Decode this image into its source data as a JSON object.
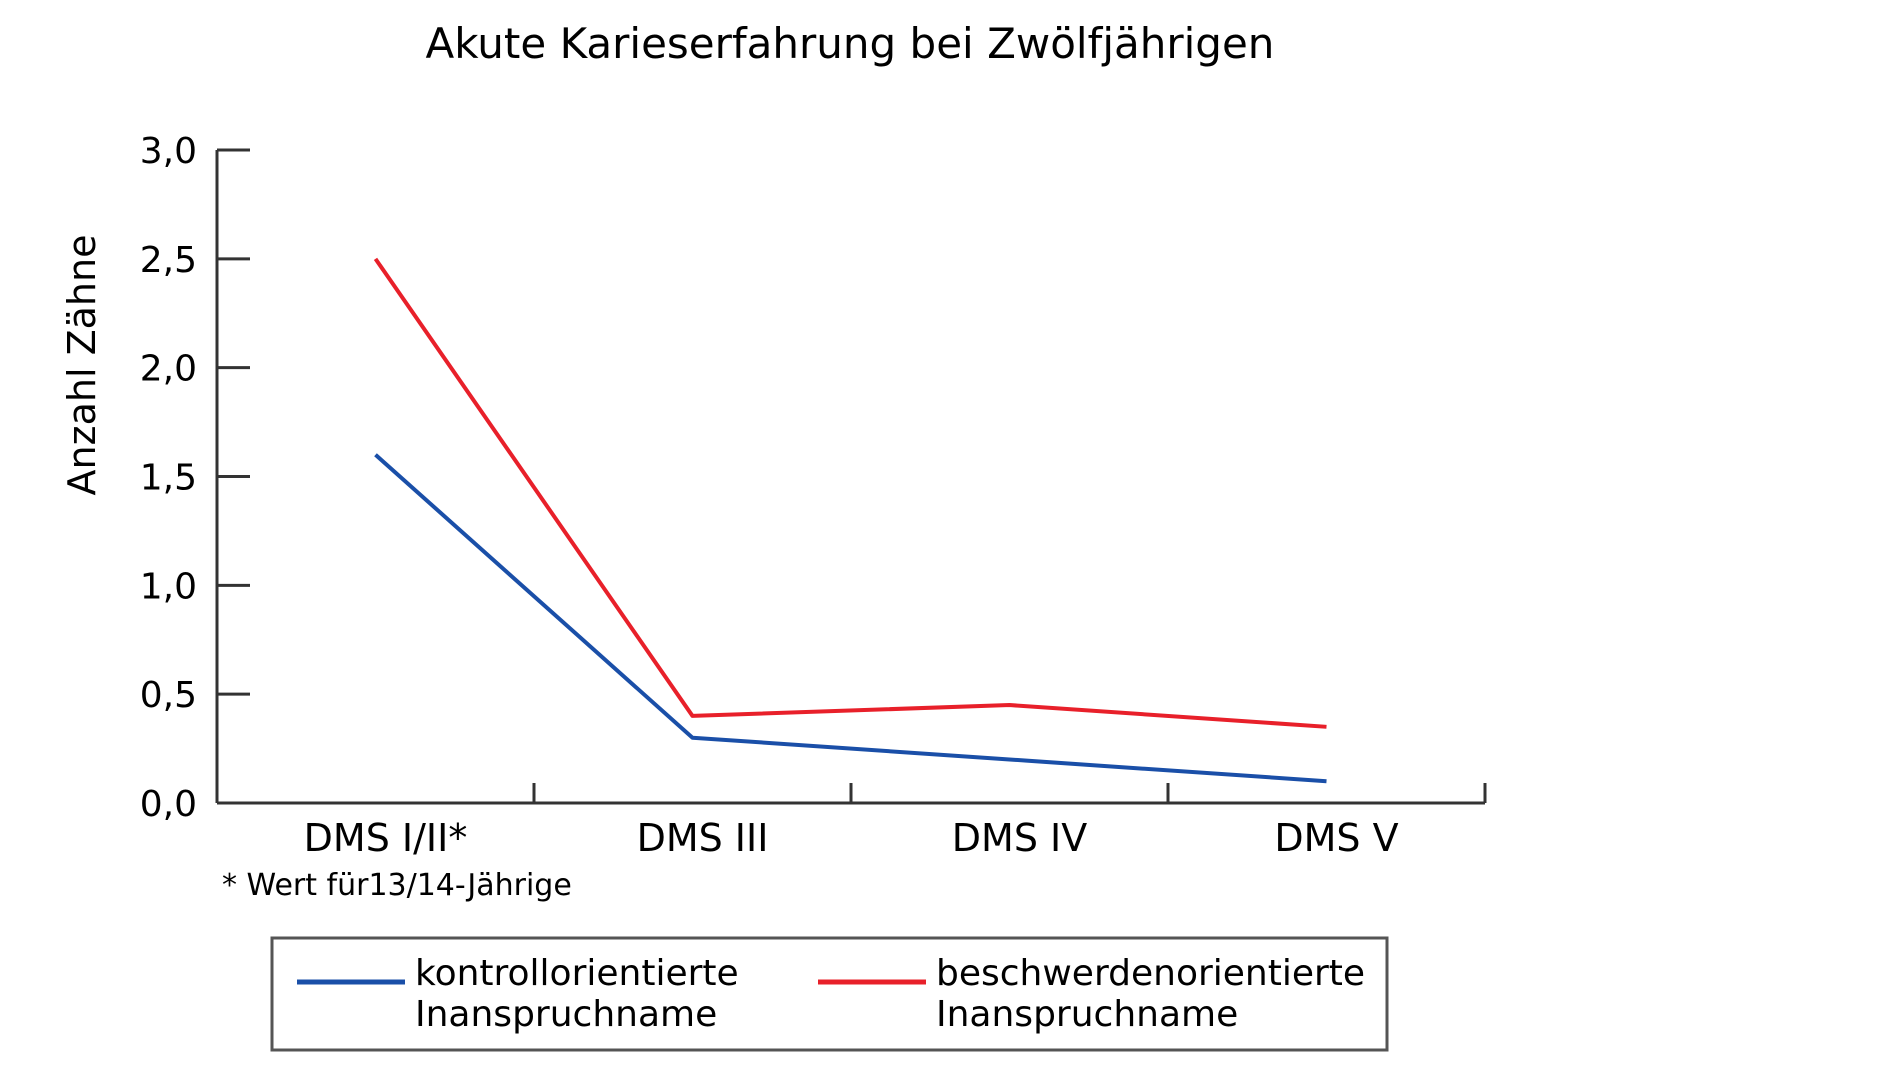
{
  "chart_data": {
    "type": "line",
    "title": "Akute Karieserfahrung bei Zwölfjährigen",
    "xlabel": "",
    "ylabel": "Anzahl Zähne",
    "categories": [
      "DMS I/II*",
      "DMS III",
      "DMS IV",
      "DMS V"
    ],
    "ylim": [
      0,
      3
    ],
    "yticks": [
      "0,0",
      "0,5",
      "1,0",
      "1,5",
      "2,0",
      "2,5",
      "3,0"
    ],
    "grid": false,
    "legend_position": "bottom",
    "footnote": "* Wert für13/14-Jährige",
    "series": [
      {
        "name": "kontrollorientierte Inanspruchname",
        "name_lines": [
          "kontrollorientierte",
          "Inanspruchname"
        ],
        "color": "#1a4fa8",
        "values": [
          1.6,
          0.3,
          0.2,
          0.1
        ]
      },
      {
        "name": "beschwerdenorientierte Inanspruchname",
        "name_lines": [
          "beschwerdenorientierte",
          "Inanspruchname"
        ],
        "color": "#e8202a",
        "values": [
          2.5,
          0.4,
          0.45,
          0.35
        ]
      }
    ]
  }
}
